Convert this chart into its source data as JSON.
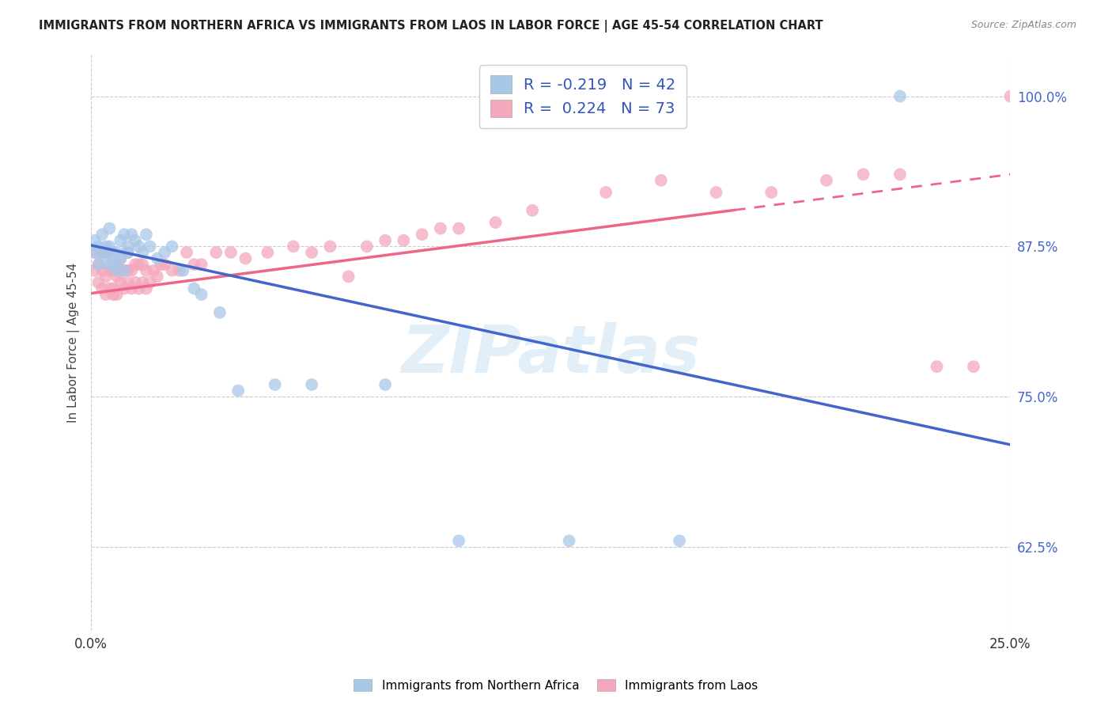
{
  "title": "IMMIGRANTS FROM NORTHERN AFRICA VS IMMIGRANTS FROM LAOS IN LABOR FORCE | AGE 45-54 CORRELATION CHART",
  "source": "Source: ZipAtlas.com",
  "ylabel": "In Labor Force | Age 45-54",
  "xmin": 0.0,
  "xmax": 0.25,
  "ymin": 0.555,
  "ymax": 1.035,
  "y_ticks": [
    0.625,
    0.75,
    0.875,
    1.0
  ],
  "y_tick_labels": [
    "62.5%",
    "75.0%",
    "87.5%",
    "100.0%"
  ],
  "x_ticks": [
    0.0,
    0.25
  ],
  "x_tick_labels": [
    "0.0%",
    "25.0%"
  ],
  "legend_label_blue": "Immigrants from Northern Africa",
  "legend_label_pink": "Immigrants from Laos",
  "R_blue": -0.219,
  "N_blue": 42,
  "R_pink": 0.224,
  "N_pink": 73,
  "blue_color": "#A8C8E8",
  "pink_color": "#F4A8BC",
  "blue_line_color": "#4466CC",
  "pink_line_color": "#EE6688",
  "watermark": "ZIPatlas",
  "blue_line_x0": 0.0,
  "blue_line_y0": 0.876,
  "blue_line_x1": 0.25,
  "blue_line_y1": 0.71,
  "pink_line_x0": 0.0,
  "pink_line_y0": 0.836,
  "pink_line_x1": 0.25,
  "pink_line_y1": 0.935,
  "blue_points_x": [
    0.001,
    0.001,
    0.002,
    0.002,
    0.003,
    0.003,
    0.004,
    0.004,
    0.005,
    0.005,
    0.005,
    0.006,
    0.006,
    0.007,
    0.007,
    0.008,
    0.008,
    0.009,
    0.009,
    0.01,
    0.01,
    0.011,
    0.012,
    0.013,
    0.014,
    0.015,
    0.016,
    0.018,
    0.02,
    0.022,
    0.025,
    0.028,
    0.03,
    0.035,
    0.04,
    0.05,
    0.06,
    0.08,
    0.1,
    0.13,
    0.16,
    0.22
  ],
  "blue_points_y": [
    0.87,
    0.88,
    0.875,
    0.86,
    0.87,
    0.885,
    0.875,
    0.865,
    0.86,
    0.875,
    0.89,
    0.86,
    0.87,
    0.855,
    0.87,
    0.88,
    0.865,
    0.885,
    0.855,
    0.875,
    0.87,
    0.885,
    0.88,
    0.875,
    0.87,
    0.885,
    0.875,
    0.865,
    0.87,
    0.875,
    0.855,
    0.84,
    0.835,
    0.82,
    0.755,
    0.76,
    0.76,
    0.76,
    0.63,
    0.63,
    0.63,
    1.0
  ],
  "pink_points_x": [
    0.001,
    0.001,
    0.002,
    0.002,
    0.003,
    0.003,
    0.003,
    0.004,
    0.004,
    0.004,
    0.005,
    0.005,
    0.005,
    0.006,
    0.006,
    0.006,
    0.007,
    0.007,
    0.007,
    0.008,
    0.008,
    0.008,
    0.009,
    0.009,
    0.01,
    0.01,
    0.01,
    0.011,
    0.011,
    0.012,
    0.012,
    0.013,
    0.013,
    0.014,
    0.014,
    0.015,
    0.015,
    0.016,
    0.017,
    0.018,
    0.019,
    0.02,
    0.022,
    0.024,
    0.026,
    0.028,
    0.03,
    0.034,
    0.038,
    0.042,
    0.048,
    0.055,
    0.06,
    0.065,
    0.07,
    0.075,
    0.08,
    0.085,
    0.09,
    0.095,
    0.1,
    0.11,
    0.12,
    0.14,
    0.155,
    0.17,
    0.185,
    0.2,
    0.21,
    0.22,
    0.23,
    0.24,
    0.25
  ],
  "pink_points_y": [
    0.855,
    0.87,
    0.845,
    0.86,
    0.84,
    0.855,
    0.87,
    0.835,
    0.85,
    0.87,
    0.84,
    0.855,
    0.87,
    0.84,
    0.855,
    0.835,
    0.85,
    0.835,
    0.86,
    0.845,
    0.855,
    0.865,
    0.84,
    0.855,
    0.845,
    0.855,
    0.87,
    0.84,
    0.855,
    0.845,
    0.86,
    0.84,
    0.86,
    0.845,
    0.86,
    0.84,
    0.855,
    0.845,
    0.855,
    0.85,
    0.86,
    0.86,
    0.855,
    0.855,
    0.87,
    0.86,
    0.86,
    0.87,
    0.87,
    0.865,
    0.87,
    0.875,
    0.87,
    0.875,
    0.85,
    0.875,
    0.88,
    0.88,
    0.885,
    0.89,
    0.89,
    0.895,
    0.905,
    0.92,
    0.93,
    0.92,
    0.92,
    0.93,
    0.935,
    0.935,
    0.775,
    0.775,
    1.0
  ]
}
